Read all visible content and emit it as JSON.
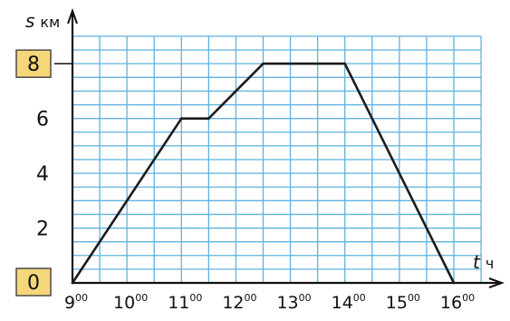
{
  "chart_data": {
    "type": "line",
    "x": [
      "9:00",
      "11:00",
      "11:30",
      "12:30",
      "14:00",
      "16:00"
    ],
    "x_hours": [
      9,
      11,
      11.5,
      12.5,
      14,
      16
    ],
    "y": [
      0,
      6,
      6,
      8,
      8,
      0
    ],
    "ylabel_main": "s",
    "ylabel_unit": "км",
    "xlabel_main": "t",
    "xlabel_unit": "ч",
    "x_ticks": [
      {
        "h": "9",
        "m": "00"
      },
      {
        "h": "10",
        "m": "00"
      },
      {
        "h": "11",
        "m": "00"
      },
      {
        "h": "12",
        "m": "00"
      },
      {
        "h": "13",
        "m": "00"
      },
      {
        "h": "14",
        "m": "00"
      },
      {
        "h": "15",
        "m": "00"
      },
      {
        "h": "16",
        "m": "00"
      }
    ],
    "y_ticks": [
      "2",
      "4",
      "6"
    ],
    "boxed_labels": [
      "8",
      "0"
    ],
    "xlim": [
      9,
      16
    ],
    "ylim": [
      0,
      8
    ],
    "grid": true,
    "colors": {
      "grid": "#5fb2df",
      "line": "#1c1c1c",
      "box_fill": "#f5d77a",
      "box_border": "#4a4a4a"
    }
  }
}
